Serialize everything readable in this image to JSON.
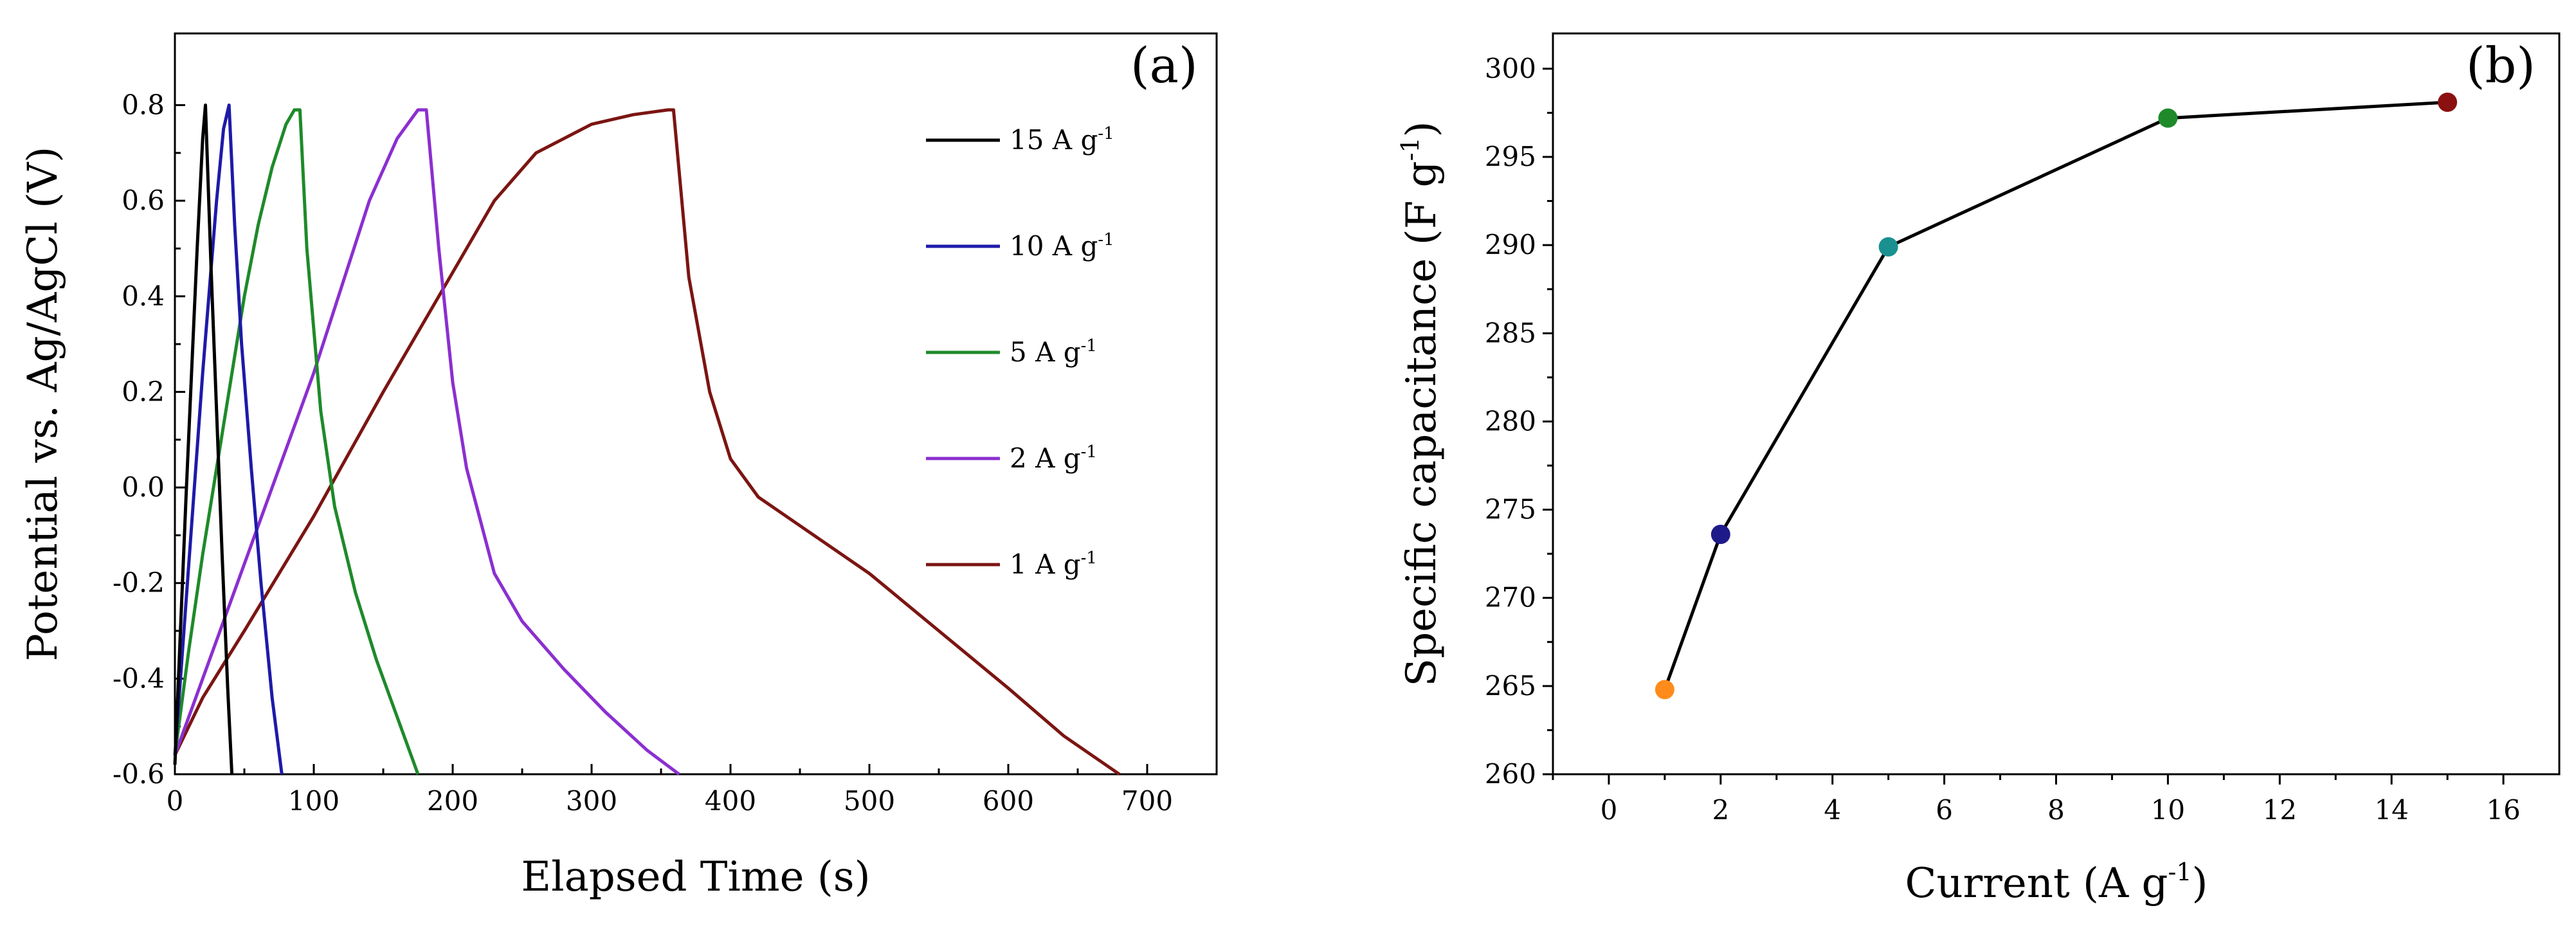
{
  "chart_data": [
    {
      "type": "line",
      "panel": "(a)",
      "xlabel": "Elapsed Time (s)",
      "ylabel": "Potential vs. Ag/AgCl (V)",
      "xlim": [
        0,
        750
      ],
      "ylim": [
        -0.6,
        0.95
      ],
      "xticks": [
        0,
        100,
        200,
        300,
        400,
        500,
        600,
        700
      ],
      "yticks": [
        -0.6,
        -0.4,
        -0.2,
        0.0,
        0.2,
        0.4,
        0.6,
        0.8
      ],
      "ytick_labels": [
        "-0.6",
        "-0.4",
        "-0.2",
        "0.0",
        "0.2",
        "0.4",
        "0.6",
        "0.8"
      ],
      "legend_position": "right",
      "series": [
        {
          "name": "15 A g",
          "unit_sup": "-1",
          "color": "#000000",
          "x": [
            0,
            4,
            8,
            12,
            16,
            20,
            22,
            26,
            30,
            34,
            38,
            41
          ],
          "y": [
            -0.58,
            -0.3,
            -0.02,
            0.24,
            0.5,
            0.73,
            0.8,
            0.46,
            0.16,
            -0.14,
            -0.42,
            -0.6
          ]
        },
        {
          "name": "10 A g",
          "unit_sup": "-1",
          "color": "#1e1aa8",
          "x": [
            0,
            5,
            10,
            15,
            20,
            25,
            30,
            35,
            39,
            43,
            48,
            55,
            62,
            70,
            77
          ],
          "y": [
            -0.56,
            -0.36,
            -0.16,
            0.04,
            0.24,
            0.42,
            0.6,
            0.75,
            0.8,
            0.55,
            0.3,
            0.04,
            -0.2,
            -0.44,
            -0.6
          ]
        },
        {
          "name": "5 A g",
          "unit_sup": "-1",
          "color": "#1e8a2a",
          "x": [
            0,
            10,
            20,
            30,
            40,
            50,
            60,
            70,
            80,
            86,
            90,
            95,
            105,
            115,
            130,
            145,
            160,
            175
          ],
          "y": [
            -0.56,
            -0.34,
            -0.14,
            0.04,
            0.22,
            0.4,
            0.55,
            0.67,
            0.76,
            0.79,
            0.79,
            0.5,
            0.16,
            -0.04,
            -0.22,
            -0.36,
            -0.48,
            -0.6
          ]
        },
        {
          "name": "2 A g",
          "unit_sup": "-1",
          "color": "#8b2fd0",
          "x": [
            0,
            20,
            40,
            60,
            80,
            100,
            120,
            140,
            160,
            175,
            181,
            190,
            200,
            210,
            230,
            250,
            280,
            310,
            340,
            363
          ],
          "y": [
            -0.56,
            -0.4,
            -0.24,
            -0.08,
            0.08,
            0.24,
            0.42,
            0.6,
            0.73,
            0.79,
            0.79,
            0.5,
            0.22,
            0.04,
            -0.18,
            -0.28,
            -0.38,
            -0.47,
            -0.55,
            -0.6
          ]
        },
        {
          "name": "1 A g",
          "unit_sup": "-1",
          "color": "#7b1512",
          "x": [
            0,
            20,
            50,
            100,
            150,
            200,
            230,
            260,
            300,
            330,
            355,
            359,
            370,
            385,
            400,
            420,
            450,
            500,
            550,
            600,
            640,
            680
          ],
          "y": [
            -0.56,
            -0.44,
            -0.3,
            -0.06,
            0.2,
            0.45,
            0.6,
            0.7,
            0.76,
            0.78,
            0.79,
            0.79,
            0.44,
            0.2,
            0.06,
            -0.02,
            -0.08,
            -0.18,
            -0.3,
            -0.42,
            -0.52,
            -0.6
          ]
        }
      ]
    },
    {
      "type": "line",
      "panel": "(b)",
      "xlabel": "Current (A g",
      "xlabel_sup": "-1",
      "xlabel_end": ")",
      "ylabel": "Specific capacitance (F g",
      "ylabel_sup": "-1",
      "ylabel_end": ")",
      "xlim": [
        -1,
        17
      ],
      "ylim": [
        260,
        302
      ],
      "xticks": [
        0,
        2,
        4,
        6,
        8,
        10,
        12,
        14,
        16
      ],
      "yticks": [
        260,
        265,
        270,
        275,
        280,
        285,
        290,
        295,
        300
      ],
      "line_color": "#000000",
      "points": [
        {
          "x": 1,
          "y": 264.8,
          "color": "#ff8c1a"
        },
        {
          "x": 2,
          "y": 273.6,
          "color": "#1f1a8a"
        },
        {
          "x": 5,
          "y": 289.9,
          "color": "#1a9090"
        },
        {
          "x": 10,
          "y": 297.2,
          "color": "#1e8a2a"
        },
        {
          "x": 15,
          "y": 298.1,
          "color": "#8b1010"
        }
      ]
    }
  ]
}
